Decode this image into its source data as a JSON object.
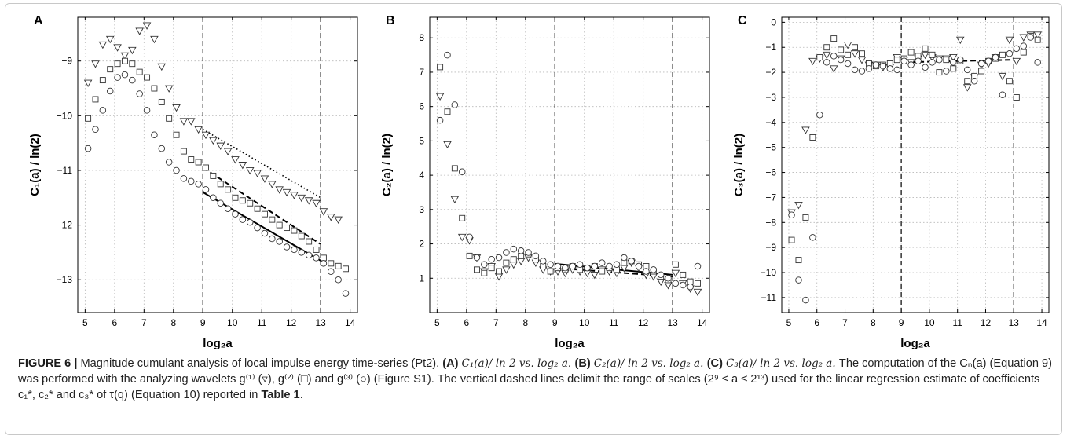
{
  "figure": {
    "caption": {
      "label": "FIGURE 6 | ",
      "intro": "Magnitude cumulant analysis of local impulse energy time-series (Pt2). ",
      "a_tag": "(A) ",
      "a_text": "C₁(a)/ ln 2 vs. log₂ a. ",
      "b_tag": "(B) ",
      "b_text": "C₂(a)/ ln 2 vs. log₂ a. ",
      "c_tag": "(C) ",
      "c_text": "C₃(a)/ ln 2 vs. log₂ a. ",
      "body": "The computation of the Cₙ(a) (Equation 9) was performed with the analyzing wavelets g⁽¹⁾ (▿), g⁽²⁾ (□) and g⁽³⁾ (○) (Figure S1). The vertical dashed lines delimit the range of scales (2⁹ ≤ a ≤ 2¹³) used for the linear regression estimate of coefficients c₁*, c₂* and c₃* of τ(q) (Equation 10) reported in ",
      "table_ref": "Table 1",
      "end": "."
    }
  },
  "chart_data": [
    {
      "panel": "A",
      "type": "scatter",
      "xlabel": "log₂a",
      "ylabel": "C₁(a) / ln(2)",
      "xlim": [
        4.75,
        14.25
      ],
      "ylim": [
        -13.6,
        -8.2
      ],
      "xticks": [
        5,
        6,
        7,
        8,
        9,
        10,
        11,
        12,
        13,
        14
      ],
      "yticks": [
        -13,
        -12,
        -11,
        -10,
        -9
      ],
      "grid": true,
      "vlines": [
        9,
        13
      ],
      "series": [
        {
          "marker": "triangle",
          "x": [
            5.1,
            5.35,
            5.6,
            5.85,
            6.1,
            6.35,
            6.6,
            6.85,
            7.1,
            7.35,
            7.6,
            7.85,
            8.1,
            8.35,
            8.6,
            8.85,
            9.1,
            9.35,
            9.6,
            9.85,
            10.1,
            10.35,
            10.6,
            10.85,
            11.1,
            11.35,
            11.6,
            11.85,
            12.1,
            12.35,
            12.6,
            12.85,
            13.1,
            13.35,
            13.6
          ],
          "y": [
            -9.4,
            -9.05,
            -8.7,
            -8.6,
            -8.75,
            -8.9,
            -8.8,
            -8.45,
            -8.35,
            -8.6,
            -9.1,
            -9.5,
            -9.85,
            -10.1,
            -10.1,
            -10.25,
            -10.35,
            -10.45,
            -10.55,
            -10.65,
            -10.8,
            -10.9,
            -11.0,
            -11.05,
            -11.15,
            -11.25,
            -11.35,
            -11.4,
            -11.45,
            -11.5,
            -11.55,
            -11.6,
            -11.75,
            -11.85,
            -11.9
          ]
        },
        {
          "marker": "square",
          "x": [
            5.1,
            5.35,
            5.6,
            5.85,
            6.1,
            6.35,
            6.6,
            6.85,
            7.1,
            7.35,
            7.6,
            7.85,
            8.1,
            8.35,
            8.6,
            8.85,
            9.1,
            9.35,
            9.6,
            9.85,
            10.1,
            10.35,
            10.6,
            10.85,
            11.1,
            11.35,
            11.6,
            11.85,
            12.1,
            12.35,
            12.6,
            12.85,
            13.1,
            13.35,
            13.6,
            13.85
          ],
          "y": [
            -10.05,
            -9.7,
            -9.35,
            -9.15,
            -9.05,
            -9.0,
            -9.05,
            -9.2,
            -9.3,
            -9.5,
            -9.75,
            -10.05,
            -10.35,
            -10.65,
            -10.8,
            -10.85,
            -10.95,
            -11.1,
            -11.25,
            -11.35,
            -11.5,
            -11.55,
            -11.6,
            -11.7,
            -11.8,
            -11.9,
            -12.0,
            -12.05,
            -12.1,
            -12.2,
            -12.3,
            -12.45,
            -12.6,
            -12.7,
            -12.75,
            -12.8
          ]
        },
        {
          "marker": "circle",
          "x": [
            5.1,
            5.35,
            5.6,
            5.85,
            6.1,
            6.35,
            6.6,
            6.85,
            7.1,
            7.35,
            7.6,
            7.85,
            8.1,
            8.35,
            8.6,
            8.85,
            9.1,
            9.35,
            9.6,
            9.85,
            10.1,
            10.35,
            10.6,
            10.85,
            11.1,
            11.35,
            11.6,
            11.85,
            12.1,
            12.35,
            12.6,
            12.85,
            13.1,
            13.35,
            13.6,
            13.85
          ],
          "y": [
            -10.6,
            -10.25,
            -9.9,
            -9.55,
            -9.3,
            -9.25,
            -9.35,
            -9.6,
            -9.9,
            -10.35,
            -10.6,
            -10.85,
            -11.0,
            -11.15,
            -11.2,
            -11.25,
            -11.35,
            -11.5,
            -11.6,
            -11.7,
            -11.8,
            -11.9,
            -11.95,
            -12.05,
            -12.15,
            -12.25,
            -12.3,
            -12.4,
            -12.45,
            -12.5,
            -12.55,
            -12.6,
            -12.7,
            -12.85,
            -13.0,
            -13.25
          ]
        }
      ],
      "fits": [
        {
          "style": "dotted",
          "x": [
            9,
            13
          ],
          "y": [
            -10.25,
            -11.5
          ]
        },
        {
          "style": "dashed",
          "x": [
            9,
            13
          ],
          "y": [
            -10.95,
            -12.35
          ]
        },
        {
          "style": "solid",
          "x": [
            9,
            13
          ],
          "y": [
            -11.4,
            -12.65
          ]
        }
      ]
    },
    {
      "panel": "B",
      "type": "scatter",
      "xlabel": "log₂a",
      "ylabel": "C₂(a) / ln(2)",
      "xlim": [
        4.75,
        14.25
      ],
      "ylim": [
        0,
        8.6
      ],
      "xticks": [
        5,
        6,
        7,
        8,
        9,
        10,
        11,
        12,
        13,
        14
      ],
      "yticks": [
        1,
        2,
        3,
        4,
        5,
        6,
        7,
        8
      ],
      "grid": true,
      "vlines": [
        9,
        13
      ],
      "series": [
        {
          "marker": "triangle",
          "x": [
            5.1,
            5.35,
            5.6,
            5.85,
            6.1,
            6.35,
            6.6,
            6.85,
            7.1,
            7.35,
            7.6,
            7.85,
            8.1,
            8.35,
            8.6,
            8.85,
            9.1,
            9.35,
            9.6,
            9.85,
            10.1,
            10.35,
            10.6,
            10.85,
            11.1,
            11.35,
            11.6,
            11.85,
            12.1,
            12.35,
            12.6,
            12.85,
            13.1,
            13.35,
            13.6,
            13.85
          ],
          "y": [
            6.3,
            4.9,
            3.3,
            2.2,
            2.1,
            1.6,
            1.2,
            1.35,
            1.05,
            1.25,
            1.4,
            1.5,
            1.6,
            1.45,
            1.25,
            1.2,
            1.2,
            1.15,
            1.25,
            1.2,
            1.15,
            1.1,
            1.25,
            1.2,
            1.15,
            1.3,
            1.45,
            1.3,
            1.1,
            1.05,
            0.9,
            0.8,
            1.15,
            0.85,
            0.7,
            0.6
          ]
        },
        {
          "marker": "square",
          "x": [
            5.1,
            5.35,
            5.6,
            5.85,
            6.1,
            6.35,
            6.6,
            6.85,
            7.1,
            7.35,
            7.6,
            7.85,
            8.1,
            8.35,
            8.6,
            8.85,
            9.1,
            9.35,
            9.6,
            9.85,
            10.1,
            10.35,
            10.6,
            10.85,
            11.1,
            11.35,
            11.6,
            11.85,
            12.1,
            12.35,
            12.6,
            12.85,
            13.1,
            13.35,
            13.6,
            13.85
          ],
          "y": [
            7.15,
            5.85,
            4.2,
            2.75,
            1.65,
            1.25,
            1.15,
            1.3,
            1.2,
            1.45,
            1.55,
            1.65,
            1.7,
            1.55,
            1.35,
            1.2,
            1.3,
            1.25,
            1.35,
            1.25,
            1.3,
            1.35,
            1.2,
            1.3,
            1.25,
            1.45,
            1.5,
            1.4,
            1.35,
            1.2,
            1.05,
            0.95,
            1.4,
            1.1,
            0.9,
            0.85
          ]
        },
        {
          "marker": "circle",
          "x": [
            5.1,
            5.35,
            5.6,
            5.85,
            6.1,
            6.35,
            6.6,
            6.85,
            7.1,
            7.35,
            7.6,
            7.85,
            8.1,
            8.35,
            8.6,
            8.85,
            9.1,
            9.35,
            9.6,
            9.85,
            10.1,
            10.35,
            10.6,
            10.85,
            11.1,
            11.35,
            11.6,
            11.85,
            12.1,
            12.35,
            12.6,
            12.85,
            13.1,
            13.35,
            13.6,
            13.85
          ],
          "y": [
            5.6,
            7.5,
            6.05,
            4.1,
            2.2,
            1.6,
            1.4,
            1.55,
            1.6,
            1.75,
            1.85,
            1.8,
            1.75,
            1.65,
            1.5,
            1.4,
            1.35,
            1.3,
            1.35,
            1.4,
            1.3,
            1.35,
            1.45,
            1.35,
            1.4,
            1.6,
            1.5,
            1.35,
            1.2,
            1.25,
            1.1,
            1.0,
            0.85,
            0.8,
            0.75,
            1.35
          ]
        }
      ],
      "fits": [
        {
          "style": "solid",
          "x": [
            9,
            13
          ],
          "y": [
            1.42,
            1.1
          ]
        },
        {
          "style": "dashed",
          "x": [
            9,
            13
          ],
          "y": [
            1.3,
            1.05
          ]
        }
      ]
    },
    {
      "panel": "C",
      "type": "scatter",
      "xlabel": "log₂a",
      "ylabel": "C₃(a) / ln(2)",
      "xlim": [
        4.75,
        14.25
      ],
      "ylim": [
        -11.6,
        0.2
      ],
      "xticks": [
        5,
        6,
        7,
        8,
        9,
        10,
        11,
        12,
        13,
        14
      ],
      "yticks": [
        0,
        -1,
        -2,
        -3,
        -4,
        -5,
        -6,
        -7,
        -8,
        -9,
        -10,
        -11
      ],
      "grid": true,
      "vlines": [
        9,
        13
      ],
      "series": [
        {
          "marker": "triangle",
          "x": [
            5.1,
            5.35,
            5.6,
            5.85,
            6.1,
            6.35,
            6.6,
            6.85,
            7.1,
            7.35,
            7.6,
            7.85,
            8.1,
            8.35,
            8.6,
            8.85,
            9.1,
            9.35,
            9.6,
            9.85,
            10.1,
            10.35,
            10.6,
            10.85,
            11.1,
            11.35,
            11.6,
            11.85,
            12.1,
            12.35,
            12.6,
            12.85,
            13.1,
            13.35,
            13.6,
            13.85
          ],
          "y": [
            -7.6,
            -7.3,
            -4.3,
            -1.55,
            -1.45,
            -1.3,
            -1.85,
            -1.45,
            -0.9,
            -1.25,
            -1.5,
            -1.7,
            -1.7,
            -1.8,
            -1.8,
            -1.4,
            -1.5,
            -1.6,
            -1.45,
            -1.3,
            -1.4,
            -1.45,
            -1.45,
            -1.4,
            -0.7,
            -2.6,
            -2.2,
            -1.7,
            -1.65,
            -1.4,
            -2.15,
            -0.7,
            -1.55,
            -0.6,
            -0.5,
            -0.5
          ]
        },
        {
          "marker": "square",
          "x": [
            5.1,
            5.35,
            5.6,
            5.85,
            6.1,
            6.35,
            6.6,
            6.85,
            7.1,
            7.35,
            7.6,
            7.85,
            8.1,
            8.35,
            8.6,
            8.85,
            9.1,
            9.35,
            9.6,
            9.85,
            10.1,
            10.35,
            10.6,
            10.85,
            11.1,
            11.35,
            11.6,
            11.85,
            12.1,
            12.35,
            12.6,
            12.85,
            13.1,
            13.35,
            13.6,
            13.85
          ],
          "y": [
            -8.7,
            -9.5,
            -7.8,
            -4.6,
            -1.4,
            -1.0,
            -0.65,
            -1.1,
            -1.3,
            -1.0,
            -1.25,
            -1.65,
            -1.75,
            -1.7,
            -1.65,
            -1.5,
            -1.45,
            -1.2,
            -1.35,
            -1.05,
            -1.3,
            -2.0,
            -1.5,
            -1.85,
            -1.55,
            -2.35,
            -2.15,
            -1.95,
            -1.55,
            -1.45,
            -1.3,
            -2.35,
            -3.0,
            -1.2,
            -0.55,
            -0.7
          ]
        },
        {
          "marker": "circle",
          "x": [
            5.1,
            5.35,
            5.6,
            5.85,
            6.1,
            6.35,
            6.6,
            6.85,
            7.1,
            7.35,
            7.6,
            7.85,
            8.1,
            8.35,
            8.6,
            8.85,
            9.1,
            9.35,
            9.6,
            9.85,
            10.1,
            10.35,
            10.6,
            10.85,
            11.1,
            11.35,
            11.6,
            11.85,
            12.1,
            12.35,
            12.6,
            12.85,
            13.1,
            13.35,
            13.6,
            13.85
          ],
          "y": [
            -7.7,
            -10.3,
            -11.1,
            -8.6,
            -3.7,
            -1.6,
            -1.35,
            -1.5,
            -1.65,
            -1.9,
            -1.95,
            -1.85,
            -1.7,
            -1.75,
            -1.85,
            -1.9,
            -1.55,
            -1.7,
            -1.55,
            -1.8,
            -1.6,
            -1.5,
            -1.95,
            -1.6,
            -1.5,
            -1.9,
            -2.35,
            -1.65,
            -1.55,
            -1.4,
            -2.9,
            -1.25,
            -1.05,
            -0.95,
            -0.6,
            -1.6
          ]
        }
      ],
      "fits": [
        {
          "style": "dashed",
          "x": [
            9,
            13
          ],
          "y": [
            -1.6,
            -1.5
          ]
        }
      ]
    }
  ]
}
